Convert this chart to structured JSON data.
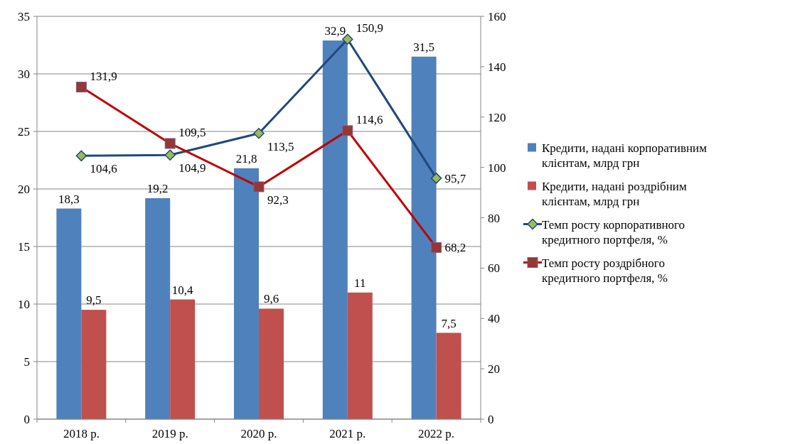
{
  "chart_data": {
    "type": "bar",
    "categories": [
      "2018 р.",
      "2019 р.",
      "2020 р.",
      "2021 р.",
      "2022 р."
    ],
    "series": [
      {
        "name": "Кредити, надані корпоративним клієнтам, млрд грн",
        "color": "#4f81bd",
        "values": [
          18.3,
          19.2,
          21.8,
          32.9,
          31.5
        ],
        "value_labels": [
          "18,3",
          "19,2",
          "21,8",
          "32,9",
          "31,5"
        ]
      },
      {
        "name": "Кредити, надані роздрібним клієнтам, млрд грн",
        "color": "#c0504d",
        "values": [
          9.5,
          10.4,
          9.6,
          11,
          7.5
        ],
        "value_labels": [
          "9,5",
          "10,4",
          "9,6",
          "11",
          "7,5"
        ]
      },
      {
        "name": "Темп росту корпоративного кредитного портфеля, %",
        "type": "line",
        "axis": "y2",
        "marker": "diamond",
        "color": "#1f497d",
        "values": [
          104.6,
          104.9,
          113.5,
          150.9,
          95.7
        ],
        "value_labels": [
          "104,6",
          "104,9",
          "113,5",
          "150,9",
          "95,7"
        ]
      },
      {
        "name": "Темп росту роздрібного кредитного портфеля, %",
        "type": "line",
        "axis": "y2",
        "marker": "square",
        "color": "#c00000",
        "values": [
          131.9,
          109.5,
          92.3,
          114.6,
          68.2
        ],
        "value_labels": [
          "131,9",
          "109,5",
          "92,3",
          "114,6",
          "68,2"
        ]
      }
    ],
    "ylim": [
      0,
      35
    ],
    "yticks": [
      0,
      5,
      10,
      15,
      20,
      25,
      30,
      35
    ],
    "y2lim": [
      0,
      160
    ],
    "y2ticks": [
      0,
      20,
      40,
      60,
      80,
      100,
      120,
      140,
      160
    ],
    "grid": "y",
    "legend": "right"
  }
}
